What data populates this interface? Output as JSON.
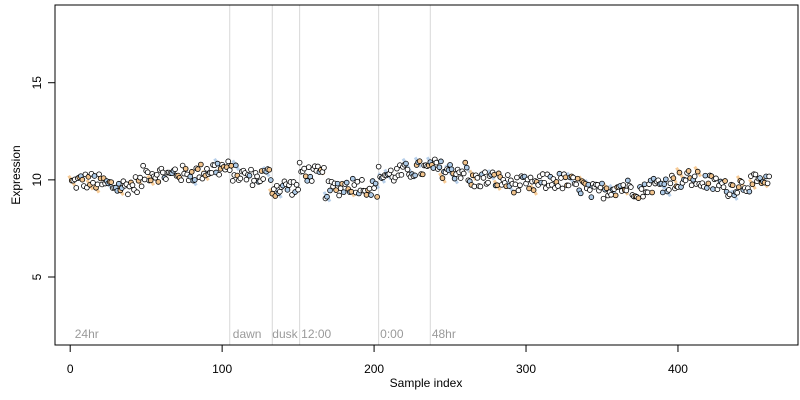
{
  "chart_data": {
    "type": "scatter",
    "title": "",
    "xlabel": "Sample index",
    "ylabel": "Expression",
    "xlim": [
      -10,
      479
    ],
    "ylim": [
      1.5,
      19
    ],
    "x_ticks": [
      0,
      100,
      200,
      300,
      400
    ],
    "y_ticks": [
      5,
      10,
      15
    ],
    "grid": false,
    "legend": "none",
    "colors": {
      "point_stroke": "#000000",
      "point_fill_blue": "#aecbe8",
      "point_fill_orange": "#f2c48d",
      "point_fill_default": "#ffffff",
      "band_blue": "#7ea9d8",
      "band_orange": "#f0a040",
      "divider": "#d8d8d8",
      "region_text": "#9a9a9a"
    },
    "dividers": [
      105,
      133,
      151,
      203,
      237
    ],
    "region_labels": [
      {
        "x": 3,
        "label": "24hr"
      },
      {
        "x": 107,
        "label": "dawn"
      },
      {
        "x": 133,
        "label": "dusk"
      },
      {
        "x": 152,
        "label": "12:00"
      },
      {
        "x": 204,
        "label": "0:00"
      },
      {
        "x": 238,
        "label": "48hr"
      }
    ],
    "segments": [
      {
        "x_start": 1,
        "x_end": 48,
        "level": 9.8
      },
      {
        "x_start": 48,
        "x_end": 68,
        "level": 10.2
      },
      {
        "x_start": 68,
        "x_end": 105,
        "level": 10.45
      },
      {
        "x_start": 105,
        "x_end": 133,
        "level": 10.3
      },
      {
        "x_start": 133,
        "x_end": 151,
        "level": 9.5
      },
      {
        "x_start": 151,
        "x_end": 168,
        "level": 10.4
      },
      {
        "x_start": 168,
        "x_end": 203,
        "level": 9.6
      },
      {
        "x_start": 203,
        "x_end": 237,
        "level": 10.4
      },
      {
        "x_start": 237,
        "x_end": 262,
        "level": 10.6
      },
      {
        "x_start": 262,
        "x_end": 300,
        "level": 9.9
      },
      {
        "x_start": 300,
        "x_end": 340,
        "level": 9.8
      },
      {
        "x_start": 340,
        "x_end": 380,
        "level": 9.5
      },
      {
        "x_start": 380,
        "x_end": 430,
        "level": 9.9
      },
      {
        "x_start": 430,
        "x_end": 460,
        "level": 9.7
      }
    ],
    "series": [
      {
        "n_points": 460,
        "y_mean": 9.95,
        "y_min": 8.8,
        "y_max": 11.2
      }
    ]
  }
}
